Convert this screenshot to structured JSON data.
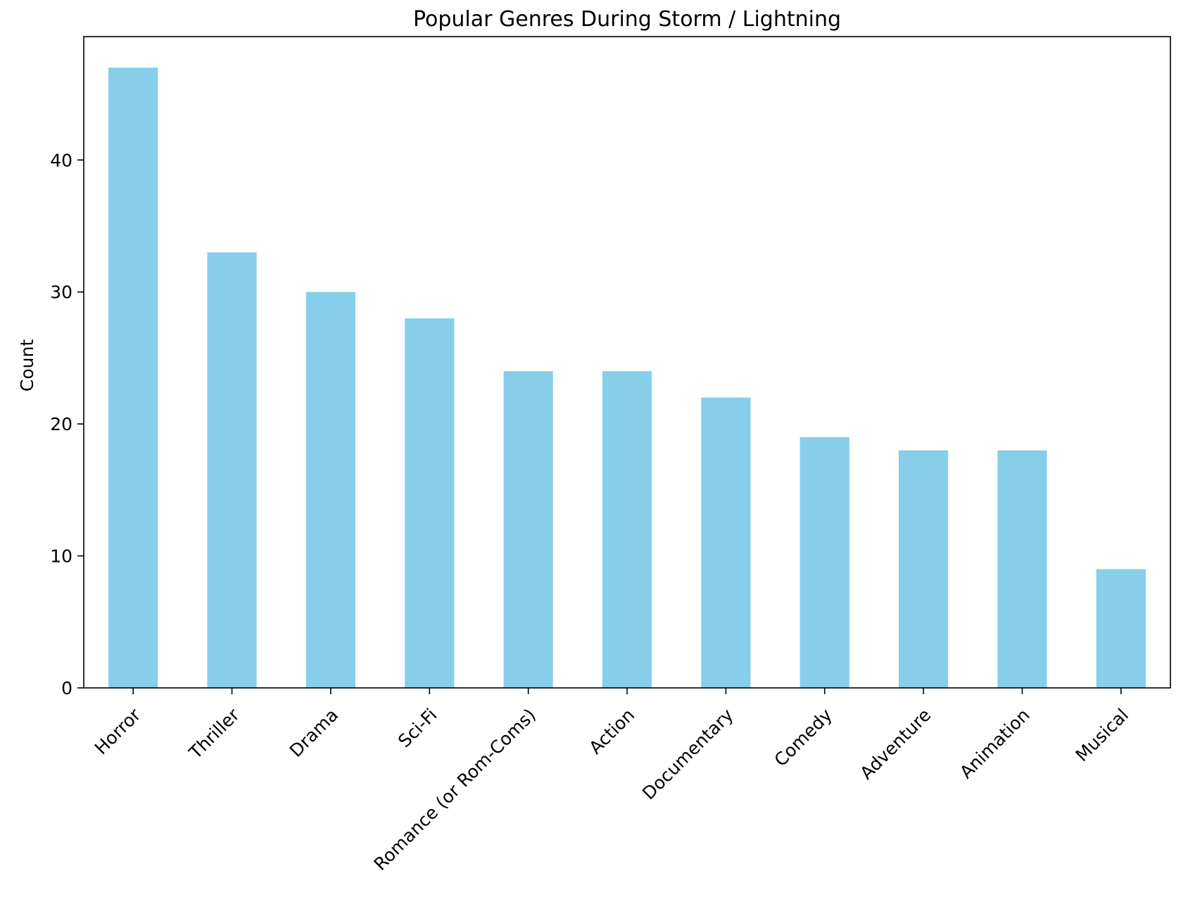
{
  "chart_data": {
    "type": "bar",
    "title": "Popular Genres During Storm / Lightning",
    "xlabel": "",
    "ylabel": "Count",
    "categories": [
      "Horror",
      "Thriller",
      "Drama",
      "Sci-Fi",
      "Romance (or Rom-Coms)",
      "Action",
      "Documentary",
      "Comedy",
      "Adventure",
      "Animation",
      "Musical"
    ],
    "values": [
      47,
      33,
      30,
      28,
      24,
      24,
      22,
      19,
      18,
      18,
      9
    ],
    "yticks": [
      0,
      10,
      20,
      30,
      40
    ],
    "ylim": [
      0,
      49.35
    ],
    "bar_color": "#87ceeb",
    "grid": false,
    "legend": "none"
  }
}
